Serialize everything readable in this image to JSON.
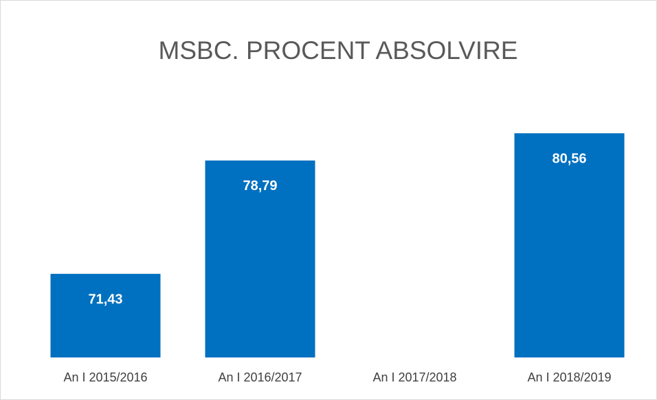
{
  "chart_data": {
    "type": "bar",
    "title": "MSBC. PROCENT ABSOLVIRE",
    "categories": [
      "An I 2015/2016",
      "An I 2016/2017",
      "An I 2017/2018",
      "An I 2018/2019"
    ],
    "values": [
      71.43,
      78.79,
      null,
      80.56
    ],
    "value_labels": [
      "71,43",
      "78,79",
      null,
      "80,56"
    ],
    "color": "#0070c0",
    "ylim": [
      66,
      84
    ]
  }
}
